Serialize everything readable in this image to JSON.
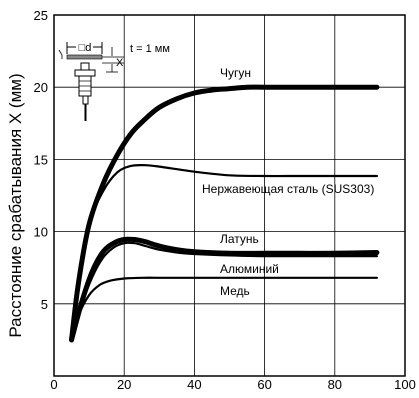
{
  "chart_data": {
    "type": "line",
    "title": "",
    "xlabel": "",
    "ylabel": "Расстояние срабатывания X (мм)",
    "xlim": [
      0,
      100
    ],
    "ylim": [
      0,
      25
    ],
    "x_ticks": [
      "0",
      "20",
      "40",
      "60",
      "80",
      "100"
    ],
    "y_ticks": [
      "5",
      "10",
      "15",
      "20",
      "25"
    ],
    "x_tick_values": [
      0,
      20,
      40,
      60,
      80,
      100
    ],
    "y_tick_values": [
      5,
      10,
      15,
      20,
      25
    ],
    "grid": true,
    "legend": "none",
    "series": [
      {
        "name": "Чугун",
        "line": "thick",
        "x": [
          5,
          7,
          10,
          14,
          18,
          22,
          26,
          30,
          35,
          40,
          45,
          50,
          55,
          60,
          70,
          80,
          92
        ],
        "y": [
          2.5,
          6.5,
          10.5,
          13.3,
          15.3,
          16.8,
          17.8,
          18.6,
          19.2,
          19.6,
          19.8,
          19.9,
          20.0,
          20.0,
          20.0,
          20.0,
          20.0
        ]
      },
      {
        "name": "Нержавеющая сталь (SUS303)",
        "line": "thin",
        "x": [
          5,
          7,
          10,
          14,
          18,
          22,
          26,
          30,
          40,
          50,
          60,
          70,
          80,
          92
        ],
        "y": [
          2.5,
          6.5,
          10.5,
          12.8,
          14.1,
          14.55,
          14.6,
          14.5,
          14.15,
          13.9,
          13.85,
          13.85,
          13.85,
          13.85
        ]
      },
      {
        "name": "Латунь",
        "line": "thick",
        "x": [
          5,
          8,
          11,
          14,
          17,
          20,
          23,
          26,
          30,
          35,
          40,
          50,
          60,
          70,
          80,
          92
        ],
        "y": [
          2.5,
          5.2,
          7.3,
          8.6,
          9.2,
          9.45,
          9.45,
          9.3,
          9.0,
          8.75,
          8.6,
          8.5,
          8.5,
          8.5,
          8.5,
          8.55
        ]
      },
      {
        "name": "Алюминий",
        "line": "thin",
        "x": [
          5,
          8,
          11,
          14,
          17,
          20,
          23,
          26,
          30,
          35,
          40,
          50,
          60,
          70,
          80,
          92
        ],
        "y": [
          2.5,
          5.0,
          6.9,
          8.2,
          8.9,
          9.2,
          9.2,
          9.0,
          8.75,
          8.55,
          8.45,
          8.35,
          8.3,
          8.3,
          8.3,
          8.3
        ]
      },
      {
        "name": "Медь",
        "line": "thin",
        "x": [
          5,
          7,
          10,
          13,
          16,
          20,
          25,
          30,
          40,
          50,
          60,
          70,
          80,
          92
        ],
        "y": [
          2.5,
          4.2,
          5.6,
          6.3,
          6.6,
          6.75,
          6.8,
          6.8,
          6.8,
          6.8,
          6.8,
          6.8,
          6.8,
          6.8
        ]
      }
    ]
  },
  "inset": {
    "d_label": "□d",
    "x_label": "X",
    "t_label": "t = 1 мм"
  }
}
